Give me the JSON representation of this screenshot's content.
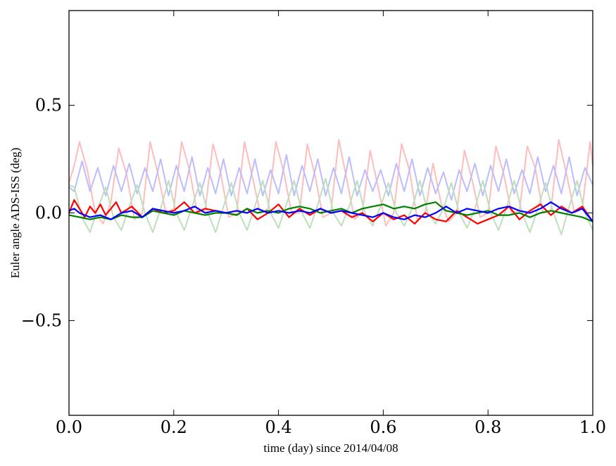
{
  "chart_data": {
    "type": "line",
    "title": "",
    "xlabel": "time (day) since 2014/04/08",
    "ylabel": "Euler angle ADS-ISS (deg)",
    "xlim": [
      0.0,
      1.0
    ],
    "ylim": [
      -0.94,
      0.94
    ],
    "x_ticks": [
      0.0,
      0.2,
      0.4,
      0.6,
      0.8,
      1.0
    ],
    "x_tick_labels": [
      "0.0",
      "0.2",
      "0.4",
      "0.6",
      "0.8",
      "1.0"
    ],
    "y_ticks": [
      -0.5,
      0.0,
      0.5
    ],
    "y_tick_labels": [
      "−0.5",
      "0.0",
      "0.5"
    ],
    "grid": false,
    "legend": "none",
    "series": [
      {
        "color": "#ffbcbc",
        "opacity": 1.0,
        "x": [
          0.0,
          0.01,
          0.02,
          0.035,
          0.05,
          0.065,
          0.08,
          0.095,
          0.11,
          0.125,
          0.14,
          0.155,
          0.17,
          0.185,
          0.2,
          0.215,
          0.23,
          0.245,
          0.26,
          0.275,
          0.29,
          0.305,
          0.32,
          0.335,
          0.35,
          0.365,
          0.38,
          0.395,
          0.41,
          0.425,
          0.44,
          0.455,
          0.47,
          0.485,
          0.5,
          0.515,
          0.53,
          0.545,
          0.56,
          0.575,
          0.59,
          0.605,
          0.62,
          0.635,
          0.65,
          0.665,
          0.68,
          0.695,
          0.71,
          0.725,
          0.74,
          0.755,
          0.77,
          0.785,
          0.8,
          0.815,
          0.83,
          0.845,
          0.86,
          0.875,
          0.89,
          0.905,
          0.92,
          0.935,
          0.95,
          0.965,
          0.98,
          0.995,
          1.0
        ],
        "y": [
          0.14,
          0.22,
          0.33,
          0.2,
          0.0,
          -0.05,
          0.05,
          0.3,
          0.18,
          -0.03,
          0.0,
          0.33,
          0.18,
          0.0,
          0.02,
          0.33,
          0.2,
          0.0,
          0.01,
          0.32,
          0.18,
          -0.02,
          0.0,
          0.33,
          0.17,
          0.0,
          0.02,
          0.33,
          0.19,
          0.0,
          0.0,
          0.32,
          0.17,
          -0.02,
          0.0,
          0.34,
          0.16,
          -0.03,
          0.0,
          0.29,
          0.12,
          -0.06,
          0.0,
          0.32,
          0.2,
          -0.03,
          0.0,
          0.23,
          0.05,
          -0.04,
          0.0,
          0.29,
          0.15,
          -0.02,
          0.0,
          0.31,
          0.18,
          0.0,
          0.01,
          0.31,
          0.21,
          0.0,
          0.01,
          0.34,
          0.18,
          0.0,
          0.02,
          0.33,
          0.22
        ]
      },
      {
        "color": "#bcbcff",
        "opacity": 1.0,
        "x": [
          0.0,
          0.01,
          0.025,
          0.04,
          0.055,
          0.07,
          0.085,
          0.1,
          0.115,
          0.13,
          0.145,
          0.16,
          0.175,
          0.19,
          0.205,
          0.22,
          0.235,
          0.25,
          0.265,
          0.28,
          0.295,
          0.31,
          0.325,
          0.34,
          0.355,
          0.37,
          0.385,
          0.4,
          0.415,
          0.43,
          0.445,
          0.46,
          0.475,
          0.49,
          0.505,
          0.52,
          0.535,
          0.55,
          0.565,
          0.58,
          0.595,
          0.61,
          0.625,
          0.64,
          0.655,
          0.67,
          0.685,
          0.7,
          0.715,
          0.73,
          0.745,
          0.76,
          0.775,
          0.79,
          0.805,
          0.82,
          0.835,
          0.85,
          0.865,
          0.88,
          0.895,
          0.91,
          0.925,
          0.94,
          0.955,
          0.97,
          0.985,
          1.0
        ],
        "y": [
          0.12,
          0.1,
          0.24,
          0.1,
          0.21,
          0.08,
          0.22,
          0.1,
          0.23,
          0.09,
          0.21,
          0.1,
          0.25,
          0.08,
          0.22,
          0.1,
          0.26,
          0.08,
          0.21,
          0.09,
          0.25,
          0.08,
          0.21,
          0.09,
          0.25,
          0.08,
          0.2,
          0.09,
          0.27,
          0.08,
          0.22,
          0.1,
          0.25,
          0.08,
          0.21,
          0.09,
          0.26,
          0.08,
          0.2,
          0.1,
          0.2,
          0.08,
          0.23,
          0.1,
          0.25,
          0.08,
          0.21,
          0.09,
          0.19,
          0.06,
          0.2,
          0.1,
          0.23,
          0.08,
          0.22,
          0.1,
          0.25,
          0.09,
          0.2,
          0.09,
          0.26,
          0.1,
          0.22,
          0.09,
          0.26,
          0.08,
          0.21,
          0.13
        ]
      },
      {
        "color": "#bce0bc",
        "opacity": 1.0,
        "x": [
          0.0,
          0.01,
          0.025,
          0.04,
          0.055,
          0.07,
          0.085,
          0.1,
          0.115,
          0.13,
          0.145,
          0.16,
          0.175,
          0.19,
          0.205,
          0.22,
          0.235,
          0.25,
          0.265,
          0.28,
          0.295,
          0.31,
          0.325,
          0.34,
          0.355,
          0.37,
          0.385,
          0.4,
          0.415,
          0.43,
          0.445,
          0.46,
          0.475,
          0.49,
          0.505,
          0.52,
          0.535,
          0.55,
          0.565,
          0.58,
          0.595,
          0.61,
          0.625,
          0.64,
          0.655,
          0.67,
          0.685,
          0.7,
          0.715,
          0.73,
          0.745,
          0.76,
          0.775,
          0.79,
          0.805,
          0.82,
          0.835,
          0.85,
          0.865,
          0.88,
          0.895,
          0.91,
          0.925,
          0.94,
          0.955,
          0.97,
          0.985,
          1.0
        ],
        "y": [
          0.13,
          0.12,
          -0.02,
          -0.09,
          0.02,
          0.12,
          -0.02,
          -0.08,
          0.03,
          0.13,
          0.0,
          -0.09,
          0.02,
          0.15,
          0.0,
          -0.08,
          0.03,
          0.14,
          0.0,
          -0.09,
          0.03,
          0.14,
          0.0,
          -0.08,
          0.03,
          0.15,
          0.0,
          -0.07,
          0.04,
          0.15,
          0.0,
          -0.07,
          0.04,
          0.16,
          0.0,
          -0.06,
          0.03,
          0.15,
          0.0,
          -0.06,
          0.03,
          0.14,
          0.0,
          -0.06,
          0.02,
          0.15,
          0.0,
          -0.05,
          0.02,
          0.14,
          0.0,
          -0.07,
          0.02,
          0.15,
          0.0,
          -0.08,
          0.02,
          0.15,
          0.0,
          -0.09,
          0.02,
          0.14,
          0.0,
          -0.1,
          0.03,
          0.15,
          0.0,
          -0.08
        ]
      },
      {
        "color": "#ff0000",
        "opacity": 1.0,
        "x": [
          0.0,
          0.01,
          0.02,
          0.03,
          0.04,
          0.05,
          0.06,
          0.07,
          0.08,
          0.09,
          0.1,
          0.12,
          0.14,
          0.16,
          0.18,
          0.2,
          0.22,
          0.24,
          0.26,
          0.28,
          0.3,
          0.32,
          0.34,
          0.36,
          0.38,
          0.4,
          0.42,
          0.44,
          0.46,
          0.48,
          0.5,
          0.52,
          0.54,
          0.56,
          0.58,
          0.6,
          0.62,
          0.64,
          0.66,
          0.68,
          0.7,
          0.72,
          0.74,
          0.76,
          0.78,
          0.8,
          0.82,
          0.84,
          0.86,
          0.88,
          0.9,
          0.92,
          0.94,
          0.96,
          0.98,
          1.0
        ],
        "y": [
          0.0,
          0.06,
          0.02,
          -0.02,
          0.03,
          0.0,
          0.04,
          -0.01,
          0.02,
          0.05,
          0.0,
          0.03,
          -0.02,
          0.02,
          0.0,
          0.01,
          0.05,
          0.0,
          0.02,
          0.01,
          0.0,
          -0.01,
          0.02,
          -0.03,
          0.0,
          0.04,
          -0.02,
          0.02,
          -0.01,
          0.02,
          0.0,
          0.01,
          -0.02,
          0.0,
          -0.04,
          0.0,
          -0.03,
          -0.01,
          -0.05,
          0.0,
          -0.03,
          -0.04,
          0.01,
          -0.02,
          -0.05,
          -0.03,
          -0.01,
          0.03,
          -0.03,
          0.01,
          0.04,
          -0.01,
          0.03,
          0.0,
          0.03,
          -0.04
        ]
      },
      {
        "color": "#008000",
        "opacity": 1.0,
        "x": [
          0.0,
          0.02,
          0.04,
          0.06,
          0.08,
          0.1,
          0.12,
          0.14,
          0.16,
          0.18,
          0.2,
          0.22,
          0.24,
          0.26,
          0.28,
          0.3,
          0.32,
          0.34,
          0.36,
          0.38,
          0.4,
          0.42,
          0.44,
          0.46,
          0.48,
          0.5,
          0.52,
          0.54,
          0.56,
          0.58,
          0.6,
          0.62,
          0.64,
          0.66,
          0.68,
          0.7,
          0.72,
          0.74,
          0.76,
          0.78,
          0.8,
          0.82,
          0.84,
          0.86,
          0.88,
          0.9,
          0.92,
          0.94,
          0.96,
          0.98,
          1.0
        ],
        "y": [
          -0.01,
          -0.02,
          -0.03,
          -0.02,
          -0.03,
          -0.01,
          -0.02,
          -0.02,
          0.01,
          0.0,
          -0.01,
          0.01,
          0.0,
          -0.01,
          0.0,
          0.0,
          -0.01,
          0.02,
          0.0,
          0.01,
          0.0,
          0.02,
          0.03,
          0.02,
          0.0,
          0.01,
          0.02,
          0.0,
          0.02,
          0.03,
          0.04,
          0.02,
          0.03,
          0.02,
          0.04,
          0.05,
          0.01,
          0.0,
          -0.01,
          0.0,
          0.01,
          -0.01,
          -0.01,
          0.0,
          -0.02,
          0.0,
          0.01,
          0.0,
          -0.01,
          -0.02,
          -0.04
        ]
      },
      {
        "color": "#0000ff",
        "opacity": 1.0,
        "x": [
          0.0,
          0.01,
          0.02,
          0.04,
          0.06,
          0.08,
          0.1,
          0.12,
          0.14,
          0.16,
          0.18,
          0.2,
          0.22,
          0.24,
          0.26,
          0.28,
          0.3,
          0.32,
          0.34,
          0.36,
          0.38,
          0.4,
          0.42,
          0.44,
          0.46,
          0.48,
          0.5,
          0.52,
          0.54,
          0.56,
          0.58,
          0.6,
          0.62,
          0.64,
          0.66,
          0.68,
          0.7,
          0.72,
          0.74,
          0.76,
          0.78,
          0.8,
          0.82,
          0.84,
          0.86,
          0.88,
          0.9,
          0.92,
          0.94,
          0.96,
          0.98,
          1.0
        ],
        "y": [
          0.01,
          0.02,
          0.0,
          -0.02,
          -0.01,
          -0.03,
          0.0,
          0.01,
          -0.02,
          0.02,
          0.01,
          0.0,
          0.01,
          0.03,
          0.0,
          0.01,
          0.0,
          0.01,
          0.0,
          0.02,
          0.0,
          0.01,
          0.0,
          0.01,
          0.0,
          0.02,
          0.0,
          0.01,
          0.0,
          -0.01,
          -0.02,
          0.0,
          -0.02,
          -0.03,
          -0.01,
          -0.02,
          0.0,
          0.03,
          0.0,
          0.02,
          0.01,
          0.0,
          0.02,
          0.03,
          0.01,
          0.0,
          0.02,
          0.05,
          0.02,
          0.0,
          0.02,
          -0.04
        ]
      }
    ]
  }
}
